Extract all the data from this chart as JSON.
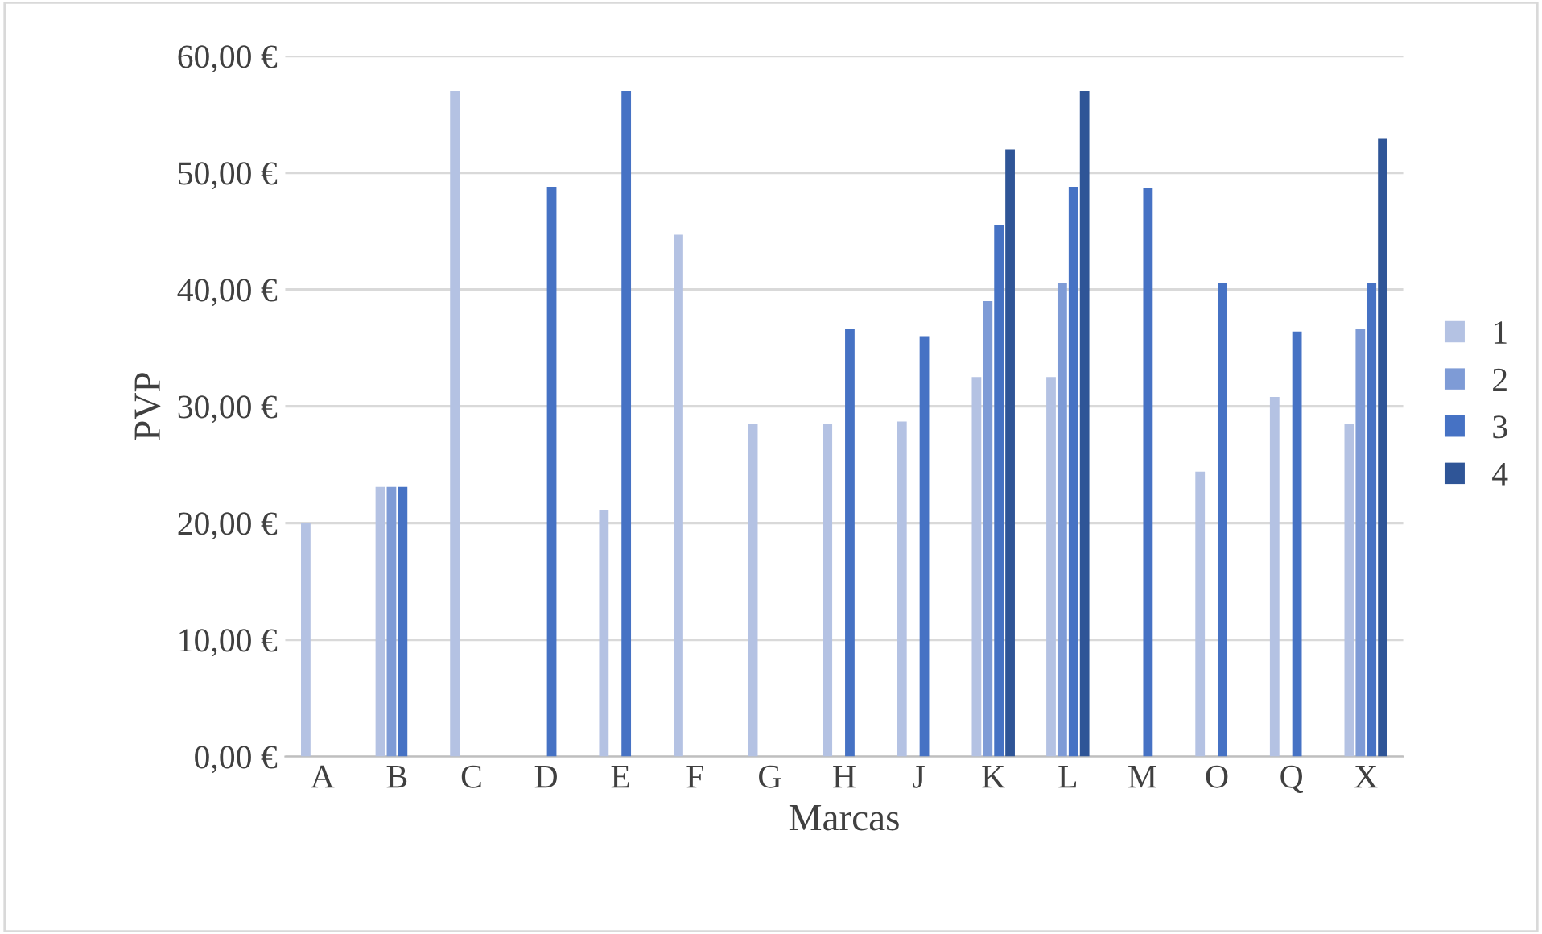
{
  "chart_data": {
    "type": "bar",
    "xlabel": "Marcas",
    "ylabel": "PVP",
    "categories": [
      "A",
      "B",
      "C",
      "D",
      "E",
      "F",
      "G",
      "H",
      "J",
      "K",
      "L",
      "M",
      "O",
      "Q",
      "X"
    ],
    "series": [
      {
        "name": "1",
        "color": "#b4c2e3",
        "values": [
          20,
          23.1,
          57,
          null,
          21.1,
          44.7,
          28.5,
          28.5,
          28.7,
          32.5,
          32.5,
          null,
          24.4,
          30.8,
          28.5
        ]
      },
      {
        "name": "2",
        "color": "#7e9bd6",
        "values": [
          null,
          23.1,
          null,
          null,
          null,
          null,
          null,
          null,
          null,
          39,
          40.6,
          null,
          null,
          null,
          36.6
        ]
      },
      {
        "name": "3",
        "color": "#4672c4",
        "values": [
          null,
          23.1,
          null,
          48.8,
          57,
          null,
          null,
          36.6,
          36,
          45.5,
          48.8,
          48.7,
          40.6,
          36.4,
          40.6
        ]
      },
      {
        "name": "4",
        "color": "#2f5597",
        "values": [
          null,
          null,
          null,
          null,
          null,
          null,
          null,
          null,
          null,
          52,
          57,
          null,
          null,
          null,
          52.9
        ]
      }
    ],
    "ylim": [
      0,
      60
    ],
    "yticks": [
      {
        "value": 0,
        "label": "0,00 €"
      },
      {
        "value": 10,
        "label": "10,00 €"
      },
      {
        "value": 20,
        "label": "20,00 €"
      },
      {
        "value": 30,
        "label": "30,00 €"
      },
      {
        "value": 40,
        "label": "40,00 €"
      },
      {
        "value": 50,
        "label": "50,00 €"
      },
      {
        "value": 60,
        "label": "60,00 €"
      }
    ],
    "grid": "y",
    "legend": "right"
  }
}
